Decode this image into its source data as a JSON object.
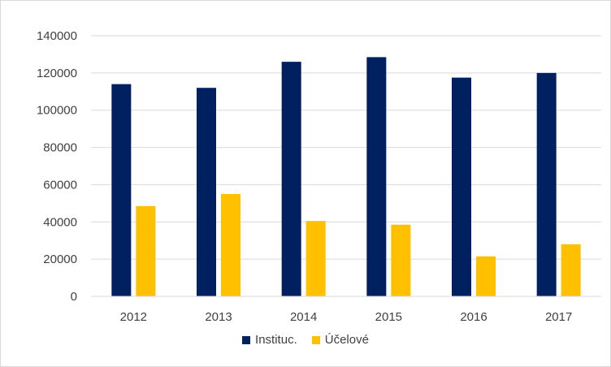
{
  "chart_data": {
    "type": "bar",
    "categories": [
      "2012",
      "2013",
      "2014",
      "2015",
      "2016",
      "2017"
    ],
    "series": [
      {
        "name": "Instituc.",
        "color": "#002060",
        "values": [
          114000,
          112000,
          126000,
          128500,
          117500,
          120000
        ]
      },
      {
        "name": "Účelové",
        "color": "#ffc000",
        "values": [
          48500,
          55000,
          40500,
          38500,
          21500,
          28000
        ]
      }
    ],
    "ylim": [
      0,
      140000
    ],
    "yticks": [
      "0",
      "20000",
      "40000",
      "60000",
      "80000",
      "100000",
      "120000",
      "140000"
    ],
    "grid": true,
    "legend": "bottom"
  }
}
